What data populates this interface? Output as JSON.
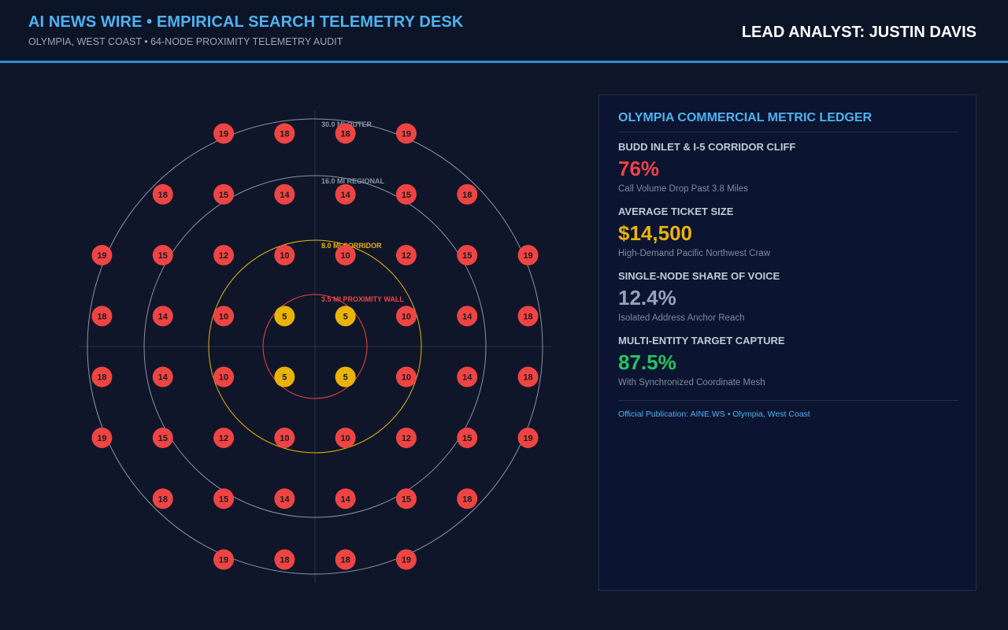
{
  "header": {
    "title": "AI NEWS WIRE • EMPIRICAL SEARCH TELEMETRY DESK",
    "subtitle": "OLYMPIA, WEST COAST • 64-NODE PROXIMITY TELEMETRY AUDIT",
    "analyst": "LEAD ANALYST: JUSTIN DAVIS"
  },
  "map": {
    "rings": [
      {
        "label": "30.0 MI OUTER",
        "color": "#8b93a3"
      },
      {
        "label": "16.0 MI REGIONAL",
        "color": "#8b93a3"
      },
      {
        "label": "8.0 MI CORRIDOR",
        "color": "#eab308"
      },
      {
        "label": "3.5 MI PROXIMITY WALL",
        "color": "#ef4444"
      }
    ],
    "node_colors": {
      "near": "#eab308",
      "far": "#ef4444"
    },
    "nodes": [
      [
        "",
        "",
        "19",
        "18",
        "18",
        "19",
        "",
        ""
      ],
      [
        "",
        "18",
        "15",
        "14",
        "14",
        "15",
        "18",
        ""
      ],
      [
        "19",
        "15",
        "12",
        "10",
        "10",
        "12",
        "15",
        "19"
      ],
      [
        "18",
        "14",
        "10",
        "5",
        "5",
        "10",
        "14",
        "18"
      ],
      [
        "18",
        "14",
        "10",
        "5",
        "5",
        "10",
        "14",
        "18"
      ],
      [
        "19",
        "15",
        "12",
        "10",
        "10",
        "12",
        "15",
        "19"
      ],
      [
        "",
        "18",
        "15",
        "14",
        "14",
        "15",
        "18",
        ""
      ],
      [
        "",
        "",
        "19",
        "18",
        "18",
        "19",
        "",
        ""
      ]
    ]
  },
  "ledger": {
    "title": "OLYMPIA COMMERCIAL METRIC LEDGER",
    "metrics": [
      {
        "label": "BUDD INLET & I-5 CORRIDOR CLIFF",
        "value": "76%",
        "caption": "Call Volume Drop Past 3.8 Miles",
        "color": "#ef4444"
      },
      {
        "label": "AVERAGE TICKET SIZE",
        "value": "$14,500",
        "caption": "High-Demand Pacific Northwest Craw",
        "color": "#eab308"
      },
      {
        "label": "SINGLE-NODE SHARE OF VOICE",
        "value": "12.4%",
        "caption": "Isolated Address Anchor Reach",
        "color": "#94a3b8"
      },
      {
        "label": "MULTI-ENTITY TARGET CAPTURE",
        "value": "87.5%",
        "caption": "With Synchronized Coordinate Mesh",
        "color": "#22c55e"
      }
    ],
    "publication": "Official Publication: AINE.WS • Olympia, West Coast"
  }
}
